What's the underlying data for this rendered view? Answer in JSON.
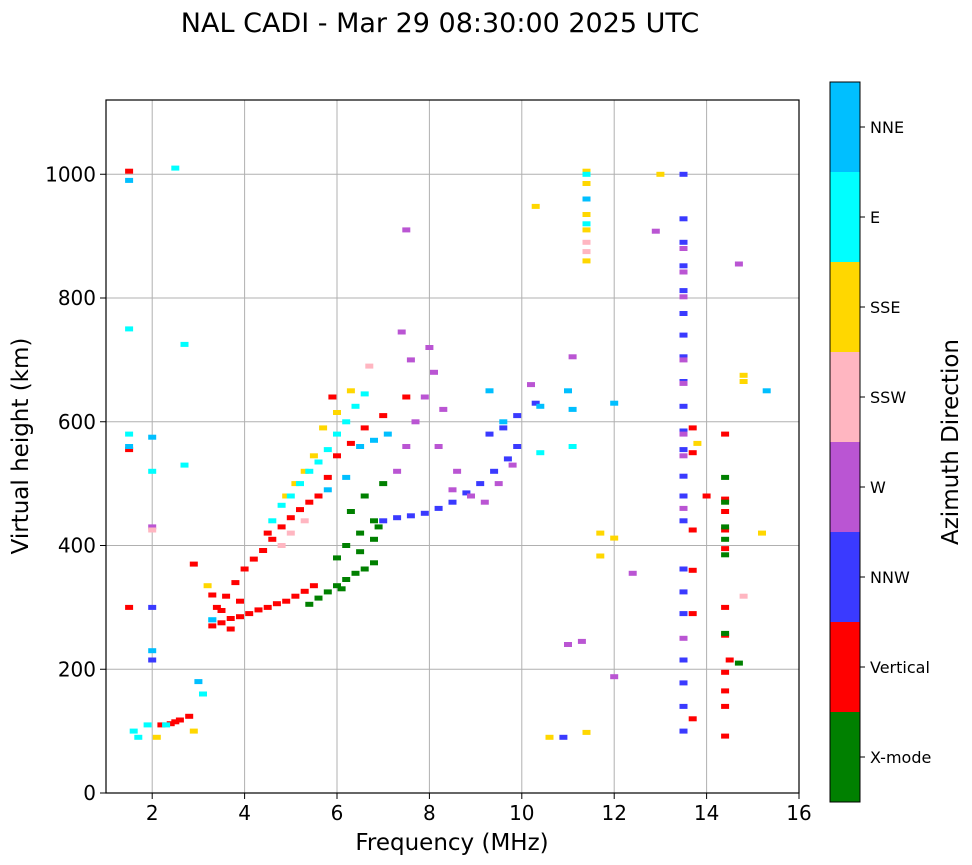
{
  "chart_data": {
    "type": "scatter",
    "title": "NAL CADI - Mar 29 08:30:00 2025 UTC",
    "xlabel": "Frequency (MHz)",
    "ylabel": "Virtual height (km)",
    "xlim": [
      1,
      16
    ],
    "ylim": [
      0,
      1120
    ],
    "xticks": [
      2,
      4,
      6,
      8,
      10,
      12,
      14,
      16
    ],
    "yticks": [
      0,
      200,
      400,
      600,
      800,
      1000
    ],
    "grid": true,
    "colorbar": {
      "label": "Azimuth Direction",
      "categories": [
        {
          "name": "X-mode",
          "color": "#008000"
        },
        {
          "name": "Vertical",
          "color": "#ff0000"
        },
        {
          "name": "NNW",
          "color": "#3a3aff"
        },
        {
          "name": "W",
          "color": "#ba55d3"
        },
        {
          "name": "SSW",
          "color": "#ffb6c1"
        },
        {
          "name": "SSE",
          "color": "#ffd700"
        },
        {
          "name": "E",
          "color": "#00ffff"
        },
        {
          "name": "NNE",
          "color": "#00bfff"
        }
      ]
    },
    "series": [
      {
        "name": "Vertical",
        "color": "#ff0000",
        "points": [
          [
            3.3,
            270
          ],
          [
            3.5,
            275
          ],
          [
            3.7,
            282
          ],
          [
            3.9,
            285
          ],
          [
            4.1,
            290
          ],
          [
            4.3,
            296
          ],
          [
            4.5,
            300
          ],
          [
            4.7,
            306
          ],
          [
            4.9,
            310
          ],
          [
            5.1,
            318
          ],
          [
            5.3,
            326
          ],
          [
            5.5,
            335
          ],
          [
            3.4,
            300
          ],
          [
            3.6,
            318
          ],
          [
            3.8,
            340
          ],
          [
            4.0,
            362
          ],
          [
            4.2,
            378
          ],
          [
            4.4,
            392
          ],
          [
            4.6,
            410
          ],
          [
            4.8,
            430
          ],
          [
            5.0,
            445
          ],
          [
            5.2,
            458
          ],
          [
            5.4,
            470
          ],
          [
            5.6,
            480
          ],
          [
            3.3,
            320
          ],
          [
            3.5,
            295
          ],
          [
            3.7,
            265
          ],
          [
            3.9,
            310
          ],
          [
            4.5,
            420
          ],
          [
            5.8,
            510
          ],
          [
            6.0,
            545
          ],
          [
            6.3,
            565
          ],
          [
            6.6,
            590
          ],
          [
            7.0,
            610
          ],
          [
            7.5,
            640
          ],
          [
            5.9,
            640
          ],
          [
            2.2,
            110
          ],
          [
            2.4,
            112
          ],
          [
            2.6,
            118
          ],
          [
            2.8,
            124
          ],
          [
            2.5,
            115
          ],
          [
            1.5,
            1005
          ],
          [
            1.5,
            300
          ],
          [
            1.5,
            555
          ],
          [
            2.9,
            370
          ],
          [
            14.4,
            92
          ],
          [
            14.4,
            140
          ],
          [
            14.4,
            165
          ],
          [
            14.4,
            195
          ],
          [
            14.4,
            255
          ],
          [
            14.4,
            300
          ],
          [
            14.4,
            395
          ],
          [
            14.4,
            425
          ],
          [
            14.4,
            455
          ],
          [
            14.4,
            475
          ],
          [
            14.4,
            580
          ],
          [
            13.7,
            120
          ],
          [
            13.7,
            290
          ],
          [
            13.7,
            360
          ],
          [
            13.7,
            425
          ],
          [
            13.7,
            550
          ],
          [
            13.7,
            590
          ],
          [
            14.0,
            480
          ],
          [
            14.5,
            215
          ]
        ]
      },
      {
        "name": "X-mode",
        "color": "#008000",
        "points": [
          [
            5.4,
            305
          ],
          [
            5.6,
            315
          ],
          [
            5.8,
            325
          ],
          [
            6.0,
            335
          ],
          [
            6.2,
            345
          ],
          [
            6.4,
            355
          ],
          [
            6.6,
            362
          ],
          [
            6.8,
            372
          ],
          [
            6.2,
            400
          ],
          [
            6.5,
            420
          ],
          [
            6.8,
            440
          ],
          [
            6.0,
            380
          ],
          [
            6.3,
            455
          ],
          [
            6.6,
            480
          ],
          [
            7.0,
            500
          ],
          [
            6.1,
            330
          ],
          [
            6.5,
            390
          ],
          [
            6.8,
            410
          ],
          [
            6.9,
            430
          ],
          [
            14.4,
            258
          ],
          [
            14.4,
            385
          ],
          [
            14.4,
            410
          ],
          [
            14.4,
            430
          ],
          [
            14.4,
            470
          ],
          [
            14.4,
            510
          ],
          [
            14.7,
            210
          ]
        ]
      },
      {
        "name": "NNW",
        "color": "#3a3aff",
        "points": [
          [
            7.0,
            440
          ],
          [
            7.3,
            445
          ],
          [
            7.6,
            448
          ],
          [
            7.9,
            452
          ],
          [
            8.2,
            460
          ],
          [
            8.5,
            470
          ],
          [
            8.8,
            485
          ],
          [
            9.1,
            500
          ],
          [
            9.4,
            520
          ],
          [
            9.7,
            540
          ],
          [
            9.9,
            560
          ],
          [
            9.3,
            580
          ],
          [
            9.6,
            590
          ],
          [
            9.9,
            610
          ],
          [
            10.3,
            630
          ],
          [
            10.9,
            90
          ],
          [
            2.0,
            215
          ],
          [
            2.0,
            300
          ],
          [
            13.5,
            100
          ],
          [
            13.5,
            140
          ],
          [
            13.5,
            178
          ],
          [
            13.5,
            215
          ],
          [
            13.5,
            290
          ],
          [
            13.5,
            325
          ],
          [
            13.5,
            362
          ],
          [
            13.5,
            440
          ],
          [
            13.5,
            480
          ],
          [
            13.5,
            512
          ],
          [
            13.5,
            555
          ],
          [
            13.5,
            585
          ],
          [
            13.5,
            625
          ],
          [
            13.5,
            665
          ],
          [
            13.5,
            705
          ],
          [
            13.5,
            740
          ],
          [
            13.5,
            775
          ],
          [
            13.5,
            812
          ],
          [
            13.5,
            852
          ],
          [
            13.5,
            890
          ],
          [
            13.5,
            928
          ],
          [
            13.5,
            1000
          ]
        ]
      },
      {
        "name": "W",
        "color": "#ba55d3",
        "points": [
          [
            7.3,
            520
          ],
          [
            7.5,
            560
          ],
          [
            7.7,
            600
          ],
          [
            7.9,
            640
          ],
          [
            8.1,
            680
          ],
          [
            8.0,
            720
          ],
          [
            7.6,
            700
          ],
          [
            8.3,
            620
          ],
          [
            8.6,
            520
          ],
          [
            8.9,
            480
          ],
          [
            9.2,
            470
          ],
          [
            9.5,
            500
          ],
          [
            9.8,
            530
          ],
          [
            7.4,
            745
          ],
          [
            8.2,
            560
          ],
          [
            8.5,
            490
          ],
          [
            7.5,
            910
          ],
          [
            10.2,
            660
          ],
          [
            11.1,
            705
          ],
          [
            11.3,
            245
          ],
          [
            11.0,
            240
          ],
          [
            12.0,
            188
          ],
          [
            12.4,
            355
          ],
          [
            12.9,
            908
          ],
          [
            13.5,
            250
          ],
          [
            13.5,
            460
          ],
          [
            13.5,
            545
          ],
          [
            13.5,
            580
          ],
          [
            13.5,
            662
          ],
          [
            13.5,
            700
          ],
          [
            13.5,
            802
          ],
          [
            13.5,
            842
          ],
          [
            13.5,
            880
          ],
          [
            14.7,
            855
          ],
          [
            2.0,
            430
          ]
        ]
      },
      {
        "name": "SSW",
        "color": "#ffb6c1",
        "points": [
          [
            4.8,
            400
          ],
          [
            5.0,
            420
          ],
          [
            5.3,
            440
          ],
          [
            11.4,
            890
          ],
          [
            11.4,
            875
          ],
          [
            6.7,
            690
          ],
          [
            14.8,
            318
          ],
          [
            2.0,
            425
          ]
        ]
      },
      {
        "name": "SSE",
        "color": "#ffd700",
        "points": [
          [
            4.9,
            480
          ],
          [
            5.1,
            500
          ],
          [
            5.3,
            520
          ],
          [
            5.5,
            545
          ],
          [
            5.7,
            590
          ],
          [
            6.0,
            615
          ],
          [
            6.3,
            650
          ],
          [
            3.2,
            335
          ],
          [
            11.4,
            1005
          ],
          [
            11.4,
            985
          ],
          [
            11.4,
            960
          ],
          [
            11.4,
            935
          ],
          [
            11.4,
            910
          ],
          [
            10.3,
            948
          ],
          [
            11.4,
            860
          ],
          [
            11.4,
            98
          ],
          [
            12.0,
            412
          ],
          [
            11.7,
            383
          ],
          [
            11.7,
            420
          ],
          [
            15.2,
            420
          ],
          [
            14.8,
            675
          ],
          [
            14.8,
            665
          ],
          [
            13.0,
            1000
          ],
          [
            13.8,
            565
          ],
          [
            2.1,
            90
          ],
          [
            2.9,
            100
          ],
          [
            10.6,
            90
          ]
        ]
      },
      {
        "name": "E",
        "color": "#00ffff",
        "points": [
          [
            4.6,
            440
          ],
          [
            4.8,
            465
          ],
          [
            5.0,
            480
          ],
          [
            5.2,
            500
          ],
          [
            5.4,
            520
          ],
          [
            5.6,
            535
          ],
          [
            5.8,
            555
          ],
          [
            6.0,
            580
          ],
          [
            6.2,
            600
          ],
          [
            6.4,
            625
          ],
          [
            6.6,
            645
          ],
          [
            3.3,
            280
          ],
          [
            1.6,
            100
          ],
          [
            1.7,
            90
          ],
          [
            1.9,
            110
          ],
          [
            2.3,
            110
          ],
          [
            3.1,
            160
          ],
          [
            1.5,
            750
          ],
          [
            1.5,
            580
          ],
          [
            2.7,
            725
          ],
          [
            2.7,
            530
          ],
          [
            2.0,
            520
          ],
          [
            2.5,
            1010
          ],
          [
            11.4,
            920
          ],
          [
            11.1,
            560
          ],
          [
            11.4,
            1000
          ],
          [
            10.4,
            550
          ]
        ]
      },
      {
        "name": "NNE",
        "color": "#00bfff",
        "points": [
          [
            5.8,
            490
          ],
          [
            6.2,
            510
          ],
          [
            6.5,
            560
          ],
          [
            6.8,
            570
          ],
          [
            7.1,
            580
          ],
          [
            9.3,
            650
          ],
          [
            9.6,
            600
          ],
          [
            10.4,
            625
          ],
          [
            11.1,
            620
          ],
          [
            11.4,
            960
          ],
          [
            11.0,
            650
          ],
          [
            1.5,
            990
          ],
          [
            1.5,
            560
          ],
          [
            2.0,
            575
          ],
          [
            2.0,
            230
          ],
          [
            3.0,
            180
          ],
          [
            15.3,
            650
          ],
          [
            12.0,
            630
          ],
          [
            3.3,
            280
          ]
        ]
      }
    ]
  },
  "colorbar": {
    "label": "Azimuth Direction",
    "tick_labels": [
      "X-mode",
      "Vertical",
      "NNW",
      "W",
      "SSW",
      "SSE",
      "E",
      "NNE"
    ]
  }
}
